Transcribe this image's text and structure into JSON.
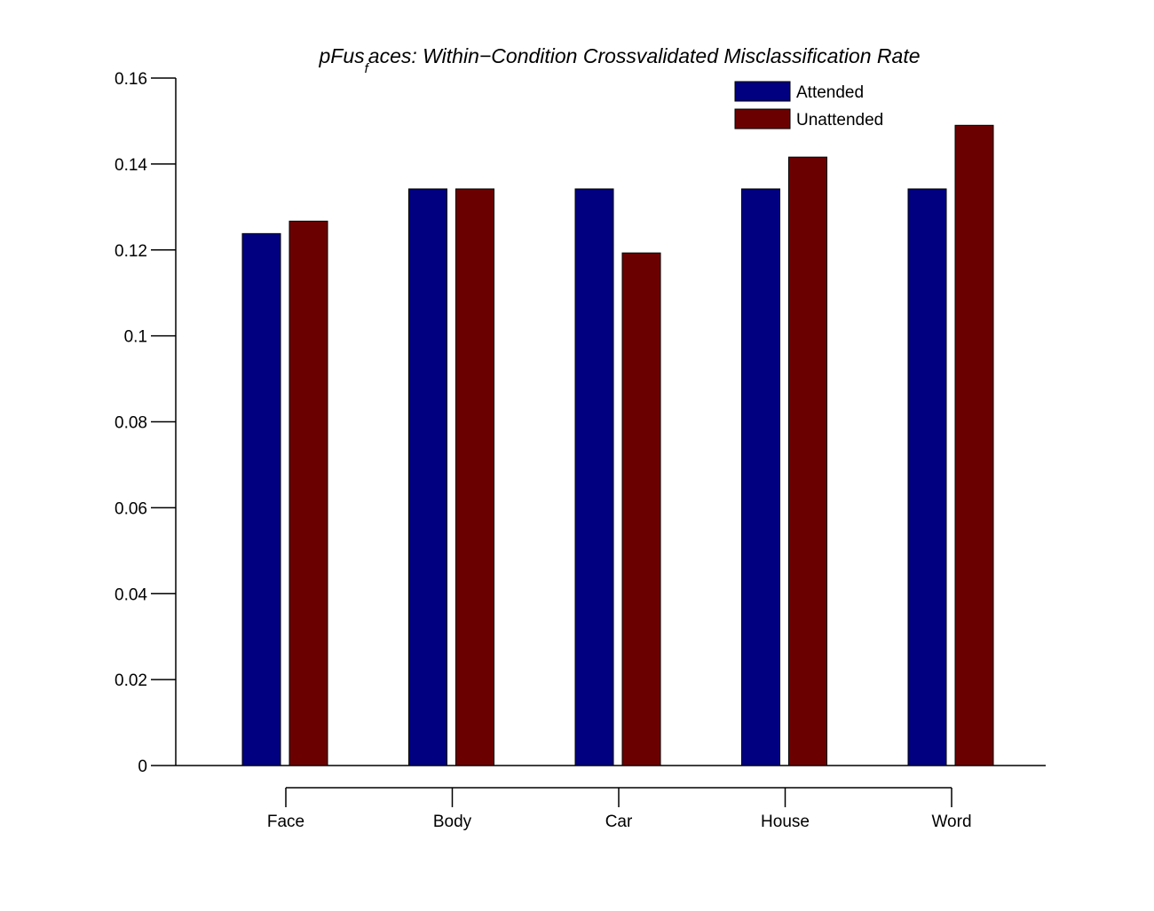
{
  "chart_data": {
    "type": "bar",
    "title": {
      "main": "pFus",
      "subscript": "f",
      "rest": "aces: Within−Condition Crossvalidated Misclassification Rate"
    },
    "xlabel": "",
    "ylabel": "",
    "categories": [
      "Face",
      "Body",
      "Car",
      "House",
      "Word"
    ],
    "series": [
      {
        "name": "Attended",
        "color": "#000080",
        "values": [
          0.1238,
          0.1342,
          0.1342,
          0.1342,
          0.1342
        ]
      },
      {
        "name": "Unattended",
        "color": "#6B0000",
        "values": [
          0.1267,
          0.1342,
          0.1193,
          0.1416,
          0.149
        ]
      }
    ],
    "ylim": [
      0,
      0.16
    ],
    "yticks": [
      0,
      0.02,
      0.04,
      0.06,
      0.08,
      0.1,
      0.12,
      0.14,
      0.16
    ],
    "ytick_labels": [
      "0",
      "0.02",
      "0.04",
      "0.06",
      "0.08",
      "0.1",
      "0.12",
      "0.14",
      "0.16"
    ],
    "grid": false,
    "legend_position": "top-right"
  }
}
